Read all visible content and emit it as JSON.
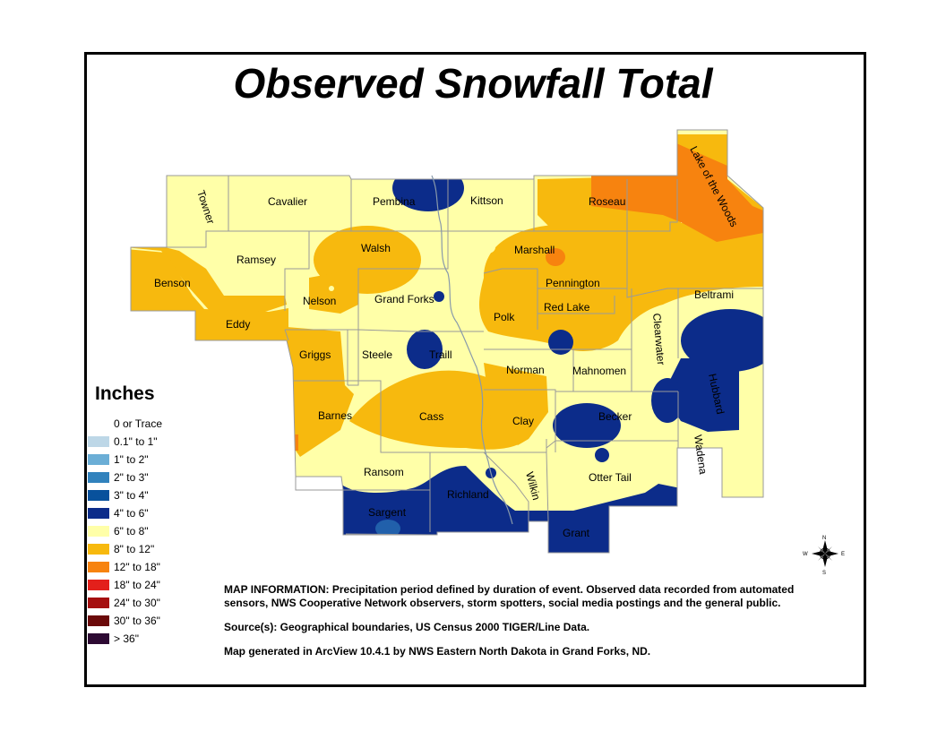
{
  "title": "Observed Snowfall Total",
  "legend": {
    "title": "Inches",
    "items": [
      {
        "label": "0 or Trace",
        "color": "#ffffff"
      },
      {
        "label": "0.1\" to 1\"",
        "color": "#bdd7e7"
      },
      {
        "label": "1\" to 2\"",
        "color": "#6baed6"
      },
      {
        "label": "2\" to 3\"",
        "color": "#3182bd"
      },
      {
        "label": "3\" to 4\"",
        "color": "#08519c"
      },
      {
        "label": "4\" to 6\"",
        "color": "#0c2c8a"
      },
      {
        "label": "6\" to 8\"",
        "color": "#ffffa8"
      },
      {
        "label": "8\" to 12\"",
        "color": "#f7b90e"
      },
      {
        "label": "12\" to 18\"",
        "color": "#f7830f"
      },
      {
        "label": "18\" to 24\"",
        "color": "#e3201b"
      },
      {
        "label": "24\" to 30\"",
        "color": "#a50f0f"
      },
      {
        "label": "30\" to 36\"",
        "color": "#6b0a0a"
      },
      {
        "label": "> 36\"",
        "color": "#2d0a33"
      }
    ]
  },
  "counties": [
    "Towner",
    "Cavalier",
    "Pembina",
    "Kittson",
    "Roseau",
    "Lake of the Woods",
    "Ramsey",
    "Walsh",
    "Marshall",
    "Benson",
    "Nelson",
    "Grand Forks",
    "Pennington",
    "Beltrami",
    "Eddy",
    "Polk",
    "Red Lake",
    "Clearwater",
    "Griggs",
    "Steele",
    "Traill",
    "Norman",
    "Mahnomen",
    "Hubbard",
    "Barnes",
    "Cass",
    "Clay",
    "Becker",
    "Wadena",
    "Ransom",
    "Richland",
    "Wilkin",
    "Otter Tail",
    "Sargent",
    "Grant"
  ],
  "info": {
    "map_information": "MAP INFORMATION:  Precipitation period defined by duration of event.  Observed data recorded from automated sensors,  NWS Cooperative Network observers, storm spotters, social media postings and the general public.",
    "sources": "Source(s):  Geographical boundaries, US Census 2000 TIGER/Line Data.",
    "generated": "Map generated in ArcView 10.4.1 by NWS Eastern North Dakota in Grand Forks, ND."
  },
  "compass": {
    "n": "N",
    "s": "S",
    "e": "E",
    "w": "W"
  }
}
